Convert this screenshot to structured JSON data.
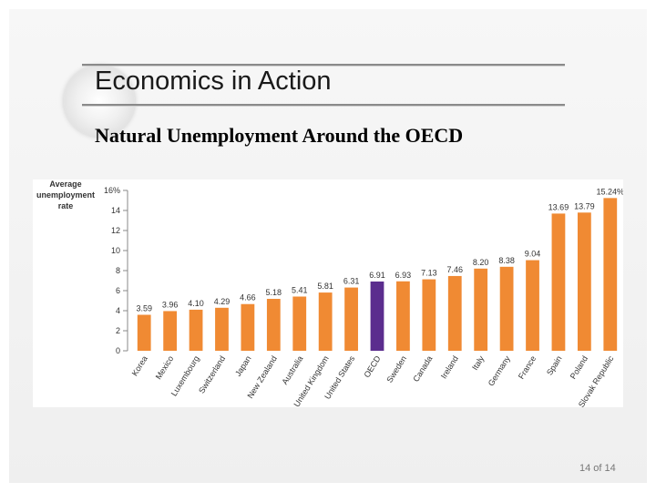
{
  "slide": {
    "title": "Economics in Action",
    "subtitle": "Natural Unemployment Around the OECD",
    "footer": "14 of 14"
  },
  "colors": {
    "bar": "#f08a33",
    "highlight": "#5b2d8e",
    "axis": "#888888",
    "text": "#333333"
  },
  "chart_data": {
    "type": "bar",
    "ylabel": "Average unemployment rate",
    "ylim": [
      0,
      16
    ],
    "yticks": [
      "0",
      "2",
      "4",
      "6",
      "8",
      "10",
      "12",
      "14",
      "16%"
    ],
    "categories": [
      "Korea",
      "Mexico",
      "Luxembourg",
      "Switzerland",
      "Japan",
      "New Zealand",
      "Australia",
      "United Kingdom",
      "United States",
      "OECD",
      "Sweden",
      "Canada",
      "Ireland",
      "Italy",
      "Germany",
      "France",
      "Spain",
      "Poland",
      "Slovak Republic"
    ],
    "values": [
      3.59,
      3.96,
      4.1,
      4.29,
      4.66,
      5.18,
      5.41,
      5.81,
      6.31,
      6.91,
      6.93,
      7.13,
      7.46,
      8.2,
      8.38,
      9.04,
      13.69,
      13.79,
      15.24
    ],
    "labels": [
      "3.59",
      "3.96",
      "4.10",
      "4.29",
      "4.66",
      "5.18",
      "5.41",
      "5.81",
      "6.31",
      "6.91",
      "6.93",
      "7.13",
      "7.46",
      "8.20",
      "8.38",
      "9.04",
      "13.69",
      "13.79",
      "15.24%"
    ],
    "highlight": "OECD",
    "grid": false,
    "legend": "none"
  }
}
